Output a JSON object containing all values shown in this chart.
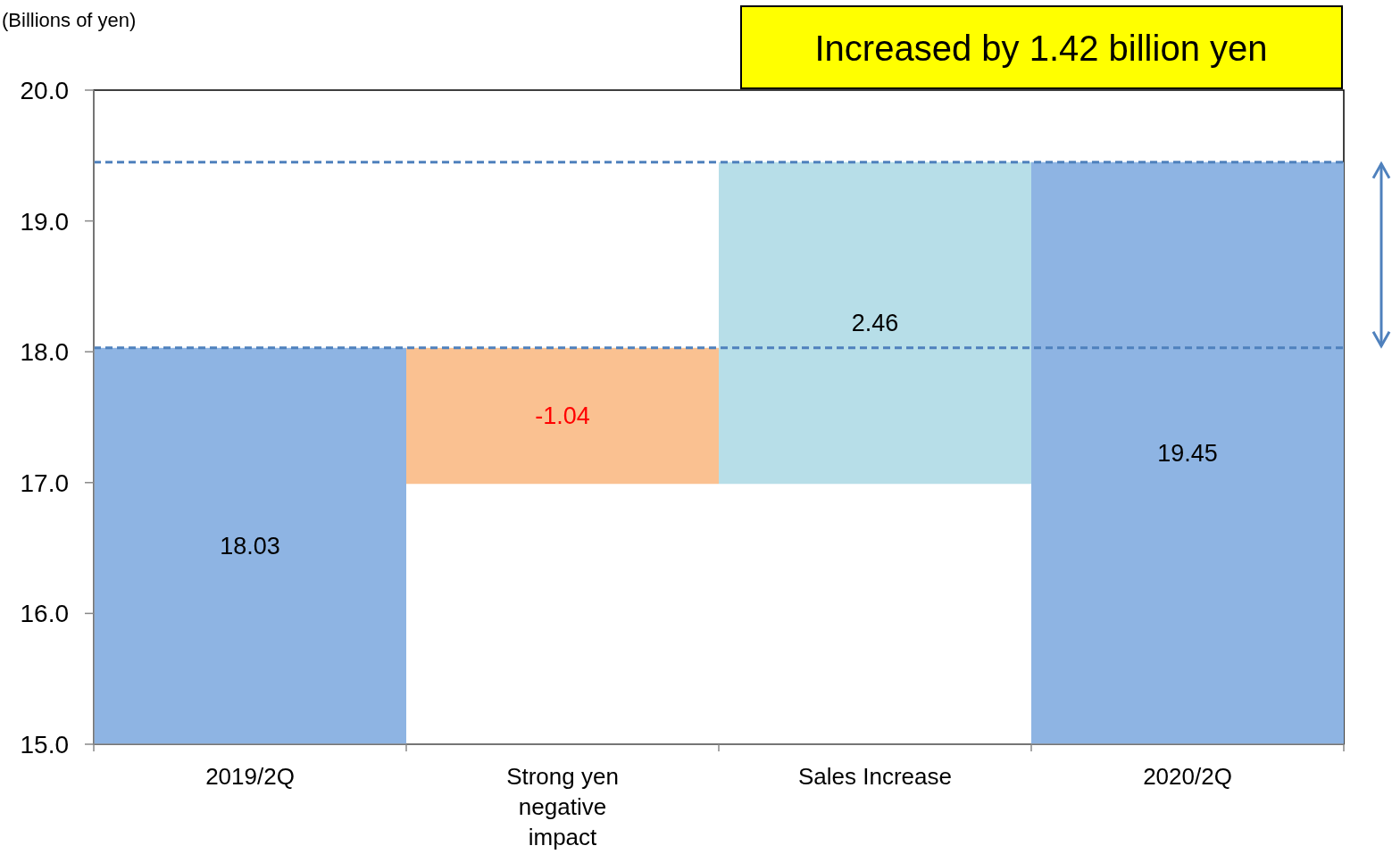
{
  "chart_data": {
    "type": "bar",
    "ylabel": "(Billions of yen)",
    "categories": [
      "2019/2Q",
      "Strong yen\nnegative\nimpact",
      "Sales Increase",
      "2020/2Q"
    ],
    "values": [
      18.03,
      -1.04,
      2.46,
      19.45
    ],
    "base": [
      null,
      18.03,
      16.99,
      null
    ],
    "colors": [
      "#8eb4e3",
      "#fac191",
      "#b7dee8",
      "#8eb4e3"
    ],
    "data_labels": true,
    "ylim": [
      15,
      20
    ],
    "yticks": [
      {
        "value": 15,
        "label": "15.0"
      },
      {
        "value": 16,
        "label": "16.0"
      },
      {
        "value": 17,
        "label": "17.0"
      },
      {
        "value": 18,
        "label": "18.0"
      },
      {
        "value": 19,
        "label": "19.0"
      },
      {
        "value": 20,
        "label": "20.0"
      }
    ],
    "grid": false,
    "ref_lines": [
      {
        "axis": "y",
        "value": 18.03,
        "color": "#4f81bd",
        "line_style": "dashed"
      },
      {
        "axis": "y",
        "value": 19.45,
        "color": "#4f81bd",
        "line_style": "dashed"
      }
    ],
    "annotations": [
      "Increased by 1.42 billion yen"
    ]
  }
}
